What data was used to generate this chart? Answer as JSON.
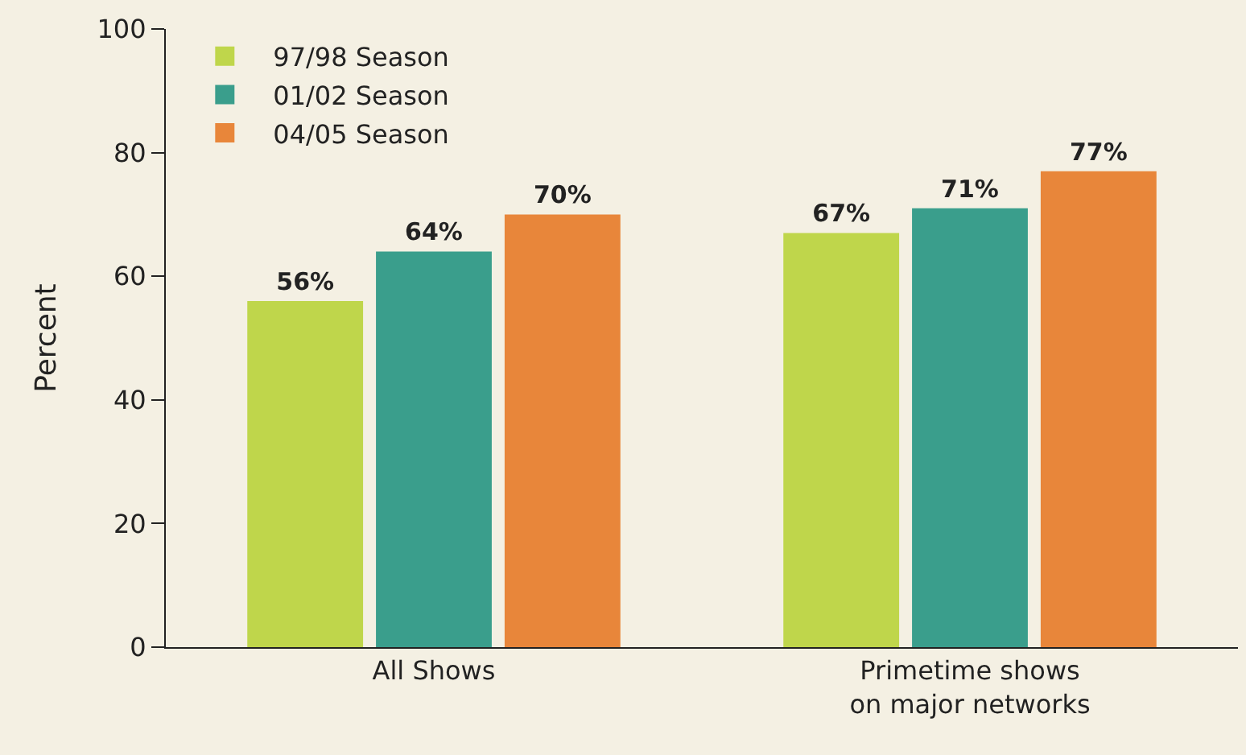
{
  "chart_data": {
    "type": "bar",
    "ylabel": "Percent",
    "categories": [
      "All Shows",
      "Primetime shows on major networks"
    ],
    "series": [
      {
        "name": "97/98 Season",
        "color": "#bfd64b",
        "values": [
          56,
          67
        ],
        "value_labels": [
          "56%",
          "67%"
        ]
      },
      {
        "name": "01/02 Season",
        "color": "#3a9e8c",
        "values": [
          64,
          71
        ],
        "value_labels": [
          "64%",
          "71%"
        ]
      },
      {
        "name": "04/05 Season",
        "color": "#e8863a",
        "values": [
          70,
          77
        ],
        "value_labels": [
          "70%",
          "77%"
        ]
      }
    ],
    "ylim": [
      0,
      100
    ],
    "yticks": [
      0,
      20,
      40,
      60,
      80,
      100
    ],
    "grid": false,
    "legend": "top left"
  }
}
